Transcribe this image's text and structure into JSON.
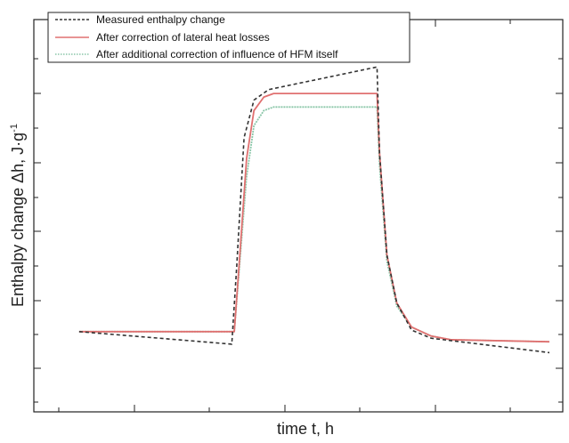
{
  "chart_data": {
    "type": "line",
    "xlabel": "time t, h",
    "ylabel": "Enthalpy change Δh, J·g",
    "ylabel_superscript": "-1",
    "xlim": [
      0,
      100
    ],
    "ylim": [
      0,
      100
    ],
    "tick_labels_shown": false,
    "grid": false,
    "legend_position": "top-left",
    "series": [
      {
        "name": "Measured enthalpy change",
        "style": "dashed",
        "color": "#333333",
        "x": [
          4.5,
          35.5,
          36.5,
          38,
          40,
          43,
          65,
          65.5,
          67,
          69,
          72,
          76,
          80,
          100
        ],
        "y": [
          12.5,
          8.3,
          34,
          77,
          89.5,
          93,
          100.5,
          72,
          38,
          22,
          13,
          10.3,
          9.5,
          5.5
        ]
      },
      {
        "name": "After correction of lateral heat losses",
        "style": "solid",
        "color": "#e07070",
        "x": [
          4.5,
          36,
          37,
          38.5,
          40,
          42,
          44,
          65,
          65.5,
          67,
          69,
          72,
          76,
          80,
          100
        ],
        "y": [
          12.5,
          12.5,
          35,
          70,
          86,
          90.5,
          91.7,
          91.7,
          72,
          38,
          22,
          14,
          11,
          9.8,
          9.1
        ]
      },
      {
        "name": "After additional correction of influence of HFM itself",
        "style": "dotted",
        "color": "#8ac6a8",
        "x": [
          4.5,
          36,
          37,
          38.5,
          40,
          42,
          44,
          65,
          65.5,
          67,
          69,
          72,
          76,
          80,
          100
        ],
        "y": [
          12.5,
          12.5,
          33,
          64,
          81,
          86,
          87.2,
          87.2,
          68,
          36,
          21,
          14,
          11,
          9.8,
          9.1
        ]
      }
    ]
  },
  "colors": {
    "axis": "#222222",
    "background": "#ffffff"
  }
}
